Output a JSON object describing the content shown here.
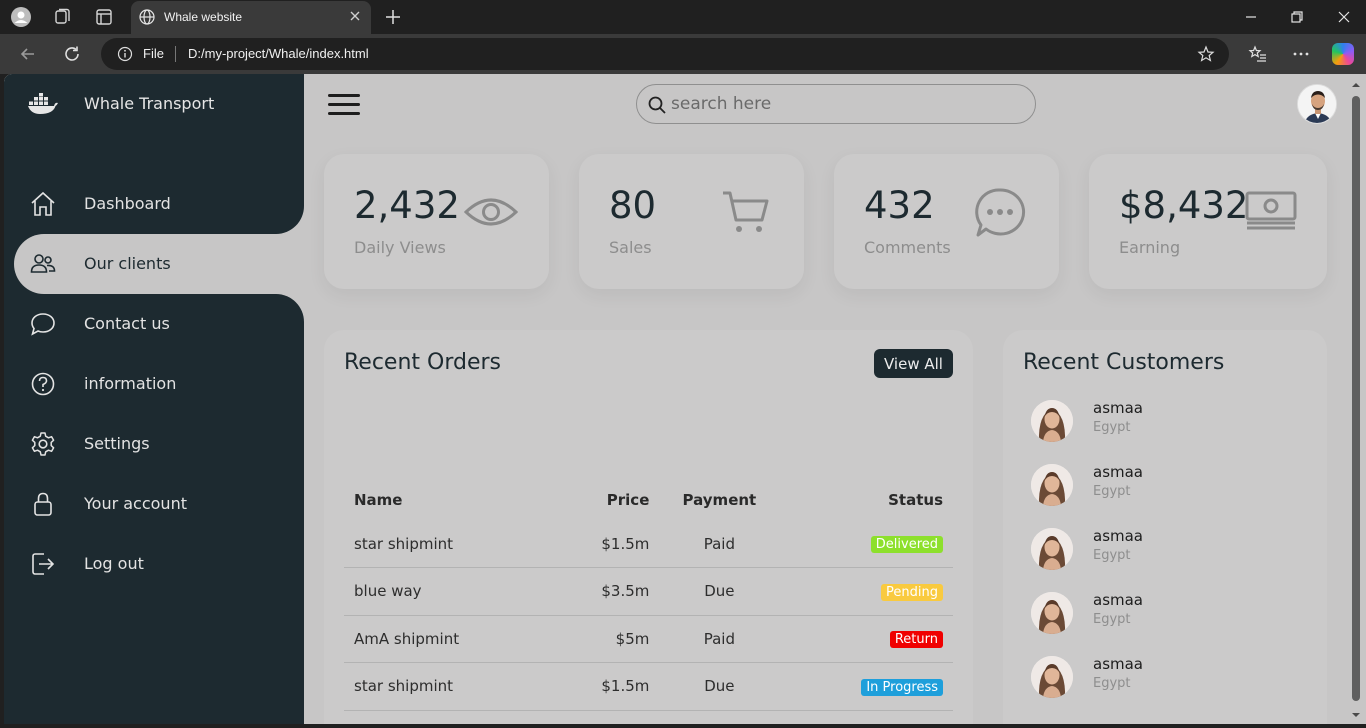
{
  "browser": {
    "tab_title": "Whale website",
    "url_scheme": "File",
    "url_path": "D:/my-project/Whale/index.html"
  },
  "sidebar": {
    "brand": "Whale Transport",
    "items": [
      {
        "label": "Dashboard",
        "icon": "home-icon"
      },
      {
        "label": "Our clients",
        "icon": "people-icon"
      },
      {
        "label": "Contact us",
        "icon": "chat-icon"
      },
      {
        "label": "information",
        "icon": "help-icon"
      },
      {
        "label": "Settings",
        "icon": "gear-icon"
      },
      {
        "label": "Your account",
        "icon": "lock-icon"
      },
      {
        "label": "Log out",
        "icon": "logout-icon"
      }
    ],
    "active_index": 1
  },
  "topbar": {
    "search_placeholder": "search here"
  },
  "cards": [
    {
      "number": "2,432",
      "label": "Daily Views",
      "icon": "eye-icon"
    },
    {
      "number": "80",
      "label": "Sales",
      "icon": "cart-icon"
    },
    {
      "number": "432",
      "label": "Comments",
      "icon": "comment-icon"
    },
    {
      "number": "$8,432",
      "label": "Earning",
      "icon": "cash-icon"
    }
  ],
  "orders": {
    "title": "Recent Orders",
    "view_all": "View All",
    "headers": {
      "name": "Name",
      "price": "Price",
      "payment": "Payment",
      "status": "Status"
    },
    "rows": [
      {
        "name": "star shipmint",
        "price": "$1.5m",
        "payment": "Paid",
        "status": "Delivered",
        "status_color": "#8de02c"
      },
      {
        "name": "blue way",
        "price": "$3.5m",
        "payment": "Due",
        "status": "Pending",
        "status_color": "#f9ca3f"
      },
      {
        "name": "AmA shipmint",
        "price": "$5m",
        "payment": "Paid",
        "status": "Return",
        "status_color": "#f00000"
      },
      {
        "name": "star shipmint",
        "price": "$1.5m",
        "payment": "Due",
        "status": "In Progress",
        "status_color": "#1e9fdb"
      }
    ]
  },
  "customers": {
    "title": "Recent Customers",
    "items": [
      {
        "name": "asmaa",
        "country": "Egypt"
      },
      {
        "name": "asmaa",
        "country": "Egypt"
      },
      {
        "name": "asmaa",
        "country": "Egypt"
      },
      {
        "name": "asmaa",
        "country": "Egypt"
      },
      {
        "name": "asmaa",
        "country": "Egypt"
      }
    ]
  },
  "colors": {
    "sidebar": "#1d2a30",
    "content_bg": "#c7c6c6"
  }
}
